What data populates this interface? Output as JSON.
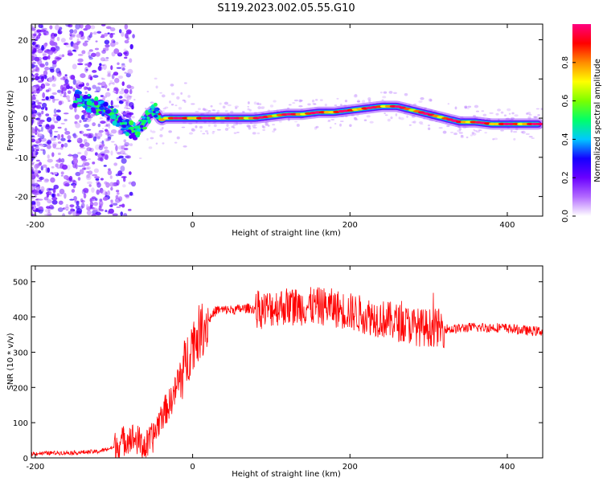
{
  "title": "S119.2023.002.05.55.G10",
  "chart_data": [
    {
      "type": "heatmap",
      "xlabel": "Height of straight line (km)",
      "ylabel": "Frequency (Hz)",
      "xlim": [
        -205,
        445
      ],
      "ylim": [
        -25,
        24
      ],
      "xticks": [
        -200,
        0,
        200,
        400
      ],
      "yticks": [
        -20,
        -10,
        0,
        10,
        20
      ],
      "colorbar": {
        "label": "Normalized spectral amplitude",
        "range": [
          0,
          1
        ],
        "ticks": [
          0.0,
          0.2,
          0.4,
          0.6,
          0.8
        ],
        "colormap": [
          "#ffffff",
          "#b36bff",
          "#6a00ff",
          "#1500ff",
          "#00c8ff",
          "#00ff6a",
          "#7bff00",
          "#ffff00",
          "#ff8c00",
          "#ff0000",
          "#ff0080"
        ]
      },
      "ridge": {
        "x": [
          -145,
          -120,
          -100,
          -85,
          -75,
          -65,
          -55,
          -50,
          -45,
          -40,
          -35,
          -20,
          0,
          50,
          80,
          100,
          120,
          140,
          160,
          180,
          200,
          220,
          240,
          260,
          280,
          300,
          320,
          340,
          360,
          380,
          400,
          420,
          440
        ],
        "y": [
          5,
          3,
          0.5,
          -2,
          -3.5,
          -2,
          1,
          2,
          1,
          -0.5,
          0,
          0,
          0,
          0,
          0,
          0.5,
          1,
          1,
          1.5,
          1.5,
          2,
          2.5,
          3,
          3,
          2,
          1,
          0,
          -1,
          -1,
          -1.5,
          -1.5,
          -1.5,
          -1.5
        ]
      }
    },
    {
      "type": "line",
      "xlabel": "Height of straight line (km)",
      "ylabel": "SNR (10 * v/v)",
      "xlim": [
        -205,
        445
      ],
      "ylim": [
        0,
        545
      ],
      "xticks": [
        -200,
        0,
        200,
        400
      ],
      "yticks": [
        0,
        100,
        200,
        300,
        400,
        500
      ],
      "color": "#ff0000",
      "series": [
        {
          "x": [
            -205,
            -180,
            -150,
            -120,
            -100,
            -90,
            -80,
            -70,
            -60,
            -50,
            -40,
            -30,
            -20,
            -10,
            0,
            10,
            20,
            30,
            50,
            70,
            90,
            110,
            130,
            150,
            170,
            190,
            210,
            230,
            250,
            270,
            290,
            310,
            330,
            350,
            370,
            390,
            410,
            430,
            445
          ],
          "y": [
            12,
            14,
            15,
            18,
            30,
            45,
            60,
            50,
            30,
            60,
            120,
            150,
            200,
            260,
            330,
            360,
            390,
            420,
            420,
            425,
            420,
            430,
            430,
            430,
            430,
            420,
            410,
            400,
            390,
            380,
            370,
            370,
            365,
            370,
            370,
            370,
            365,
            360,
            360
          ]
        }
      ]
    }
  ]
}
